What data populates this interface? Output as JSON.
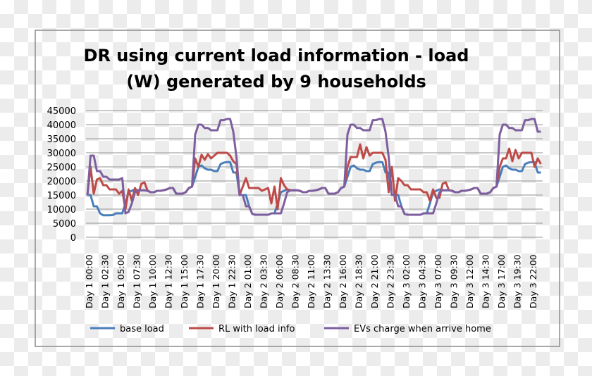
{
  "chart_data": {
    "type": "line",
    "title": "DR using current load information - load (W) generated by 9 households",
    "title_lines": [
      "DR using current load information - load",
      "(W) generated by 9 households"
    ],
    "xlabel": "",
    "ylabel": "",
    "ylim": [
      0,
      45000
    ],
    "yticks": [
      0,
      5000,
      10000,
      15000,
      20000,
      25000,
      30000,
      35000,
      40000,
      45000
    ],
    "grid": true,
    "legend_position": "bottom",
    "x_interval": "30 minutes",
    "x_tick_labels": [
      "Day 1 00:00",
      "Day 1 02:30",
      "Day 1 05:00",
      "Day 1 07:30",
      "Day 1 10:00",
      "Day 1 12:30",
      "Day 1 15:00",
      "Day 1 17:30",
      "Day 1 20:00",
      "Day 1 22:30",
      "Day 2 01:00",
      "Day 2 03:30",
      "Day 2 06:00",
      "Day 2 08:30",
      "Day 2 11:00",
      "Day 2 13:30",
      "Day 2 16:00",
      "Day 2 18:30",
      "Day 2 21:00",
      "Day 2 23:30",
      "Day 3 02:00",
      "Day 3 04:30",
      "Day 3 07:00",
      "Day 3 09:30",
      "Day 3 12:00",
      "Day 3 14:30",
      "Day 3 17:00",
      "Day 3 19:30",
      "Day 3 22:00"
    ],
    "series": [
      {
        "name": "base load",
        "color": "#4a7ebb",
        "values": [
          15000,
          15000,
          11000,
          11000,
          8500,
          7800,
          7800,
          7800,
          7900,
          8500,
          8500,
          8500,
          12000,
          16000,
          16500,
          17000,
          16700,
          16700,
          16700,
          16500,
          16000,
          16000,
          16500,
          16500,
          16700,
          17000,
          17500,
          17500,
          15500,
          15500,
          15500,
          16000,
          17500,
          18000,
          21500,
          25000,
          25500,
          24500,
          24000,
          24000,
          23500,
          23500,
          26000,
          26500,
          26700,
          26700,
          23000,
          23000,
          15000,
          15000,
          15000,
          11000,
          8300,
          8000,
          8000,
          8000,
          8000,
          8000,
          8500,
          8500,
          12000,
          16000,
          16500,
          17000,
          16700,
          16700,
          16700,
          16500,
          16000,
          16000,
          16500,
          16500,
          16700,
          17000,
          17500,
          17500,
          15500,
          15500,
          15500,
          16000,
          17500,
          18000,
          21500,
          25000,
          25500,
          24500,
          24000,
          24000,
          23500,
          23500,
          26000,
          26500,
          26700,
          26700,
          23000,
          23000,
          15000,
          15000,
          15000,
          11000,
          8300,
          8000,
          8000,
          8000,
          8000,
          8000,
          8500,
          8500,
          12000,
          16000,
          16500,
          17000,
          16700,
          16700,
          16700,
          16500,
          16000,
          16000,
          16500,
          16500,
          16700,
          17000,
          17500,
          17500,
          15500,
          15500,
          15500,
          16000,
          17500,
          18000,
          21500,
          25000,
          25500,
          24500,
          24000,
          24000,
          23500,
          23500,
          26000,
          26500,
          26700,
          26700,
          23000,
          23000
        ]
      },
      {
        "name": "RL with load info",
        "color": "#be4b48",
        "values": [
          15000,
          25000,
          15500,
          20500,
          21000,
          18500,
          18500,
          17000,
          17000,
          17000,
          15500,
          16500,
          10000,
          17000,
          13000,
          17500,
          15000,
          19000,
          19500,
          16500,
          16000,
          16000,
          16500,
          16500,
          16700,
          17000,
          17500,
          17500,
          15500,
          15500,
          15500,
          16000,
          17500,
          18000,
          28000,
          25000,
          29300,
          27500,
          29500,
          28000,
          29000,
          30000,
          30000,
          30000,
          30000,
          29000,
          27000,
          26000,
          15000,
          18000,
          21000,
          17500,
          17500,
          17500,
          17500,
          16500,
          17000,
          17500,
          12000,
          18000,
          10000,
          21000,
          18500,
          17000,
          16700,
          16700,
          16700,
          16500,
          16000,
          16000,
          16500,
          16500,
          16700,
          17000,
          17500,
          17500,
          15500,
          15500,
          15500,
          16000,
          17500,
          18000,
          25000,
          28500,
          28500,
          28500,
          33000,
          28000,
          32000,
          29000,
          30000,
          30000,
          30000,
          30000,
          27500,
          16000,
          25000,
          13000,
          21000,
          20000,
          18500,
          18500,
          17000,
          17000,
          17000,
          17000,
          16000,
          16000,
          13000,
          17000,
          14000,
          14000,
          19000,
          19500,
          16700,
          16500,
          16000,
          16000,
          16500,
          16500,
          16700,
          17000,
          17500,
          17500,
          15500,
          15500,
          15500,
          16000,
          17500,
          18000,
          25000,
          28000,
          28000,
          31500,
          27000,
          31000,
          28000,
          30000,
          30000,
          30000,
          30000,
          25000,
          28000,
          26000
        ]
      },
      {
        "name": "EVs charge when arrive home",
        "color": "#7d5fa0",
        "values": [
          15000,
          29000,
          29000,
          23500,
          23500,
          21500,
          21500,
          20500,
          20500,
          20500,
          20500,
          21000,
          8500,
          9000,
          12000,
          16000,
          16700,
          16700,
          16700,
          16500,
          16000,
          16000,
          16500,
          16500,
          16700,
          17000,
          17500,
          17500,
          15500,
          15500,
          15500,
          16000,
          17500,
          18000,
          36500,
          40000,
          40000,
          38800,
          38800,
          38000,
          38000,
          38000,
          41600,
          41600,
          42000,
          42000,
          37500,
          28500,
          15000,
          15000,
          11000,
          11000,
          8300,
          8000,
          8000,
          8000,
          8000,
          8000,
          8500,
          8500,
          8500,
          8500,
          12000,
          16000,
          16700,
          16700,
          16700,
          16500,
          16000,
          16000,
          16500,
          16500,
          16700,
          17000,
          17500,
          17500,
          15500,
          15500,
          15500,
          16000,
          17500,
          18000,
          36500,
          40000,
          40000,
          38800,
          38800,
          38000,
          38000,
          38000,
          41600,
          41600,
          42000,
          42000,
          37500,
          28500,
          15000,
          15000,
          11000,
          11000,
          8300,
          8000,
          8000,
          8000,
          8000,
          8000,
          8500,
          8500,
          8500,
          8500,
          12000,
          16000,
          16700,
          16700,
          16700,
          16500,
          16000,
          16000,
          16500,
          16500,
          16700,
          17000,
          17500,
          17500,
          15500,
          15500,
          15500,
          16000,
          17500,
          18000,
          36500,
          40000,
          40000,
          38800,
          38800,
          38000,
          38000,
          38000,
          41600,
          41600,
          42000,
          42000,
          37500,
          37500
        ]
      }
    ]
  }
}
